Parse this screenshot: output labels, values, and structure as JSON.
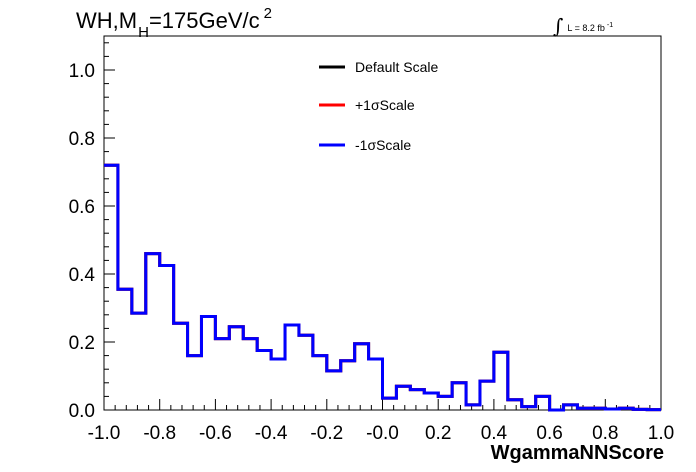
{
  "title": {
    "prefix": "WH,M",
    "subscript": "H",
    "main": "=175GeV/c",
    "superscript": "2"
  },
  "luminosity": {
    "integral_symbol": "∫",
    "text": "L = 8.2 fb",
    "superscript": "-1"
  },
  "chart_data": {
    "type": "histogram",
    "xlabel": "WgammaNNScore",
    "xlim": [
      -1.0,
      1.0
    ],
    "ylim": [
      0.0,
      1.1
    ],
    "x_ticks": [
      "-1.0",
      "-0.8",
      "-0.6",
      "-0.4",
      "-0.2",
      "-0.0",
      "0.2",
      "0.4",
      "0.6",
      "0.8",
      "1.0"
    ],
    "y_ticks": [
      "0.0",
      "0.2",
      "0.4",
      "0.6",
      "0.8",
      "1.0"
    ],
    "bin_edges": [
      -1.0,
      -0.95,
      -0.9,
      -0.85,
      -0.8,
      -0.75,
      -0.7,
      -0.65,
      -0.6,
      -0.55,
      -0.5,
      -0.45,
      -0.4,
      -0.35,
      -0.3,
      -0.25,
      -0.2,
      -0.15,
      -0.1,
      -0.05,
      0.0,
      0.05,
      0.1,
      0.15,
      0.2,
      0.25,
      0.3,
      0.35,
      0.4,
      0.45,
      0.5,
      0.55,
      0.6,
      0.65,
      0.7,
      0.75,
      0.8,
      0.85,
      0.9,
      0.95,
      1.0
    ],
    "series": [
      {
        "name": "Default Scale",
        "color": "#000000",
        "values": [
          0.72,
          0.355,
          0.285,
          0.46,
          0.425,
          0.255,
          0.16,
          0.275,
          0.21,
          0.245,
          0.21,
          0.175,
          0.15,
          0.25,
          0.22,
          0.16,
          0.115,
          0.145,
          0.195,
          0.15,
          0.035,
          0.07,
          0.06,
          0.05,
          0.04,
          0.08,
          0.015,
          0.085,
          0.17,
          0.03,
          0.01,
          0.04,
          0.0,
          0.015,
          0.005,
          0.005,
          0.003,
          0.005,
          0.002,
          0.001
        ]
      },
      {
        "name": "+1σScale",
        "color": "#ff0000",
        "values": [
          0.72,
          0.355,
          0.285,
          0.46,
          0.425,
          0.255,
          0.16,
          0.275,
          0.21,
          0.245,
          0.21,
          0.175,
          0.15,
          0.25,
          0.22,
          0.16,
          0.115,
          0.145,
          0.195,
          0.15,
          0.035,
          0.07,
          0.06,
          0.05,
          0.04,
          0.08,
          0.015,
          0.085,
          0.17,
          0.03,
          0.01,
          0.04,
          0.0,
          0.015,
          0.005,
          0.005,
          0.003,
          0.005,
          0.002,
          0.001
        ]
      },
      {
        "name": "-1σScale",
        "color": "#0000ff",
        "values": [
          0.72,
          0.355,
          0.285,
          0.46,
          0.425,
          0.255,
          0.16,
          0.275,
          0.21,
          0.245,
          0.21,
          0.175,
          0.15,
          0.25,
          0.22,
          0.16,
          0.115,
          0.145,
          0.195,
          0.15,
          0.035,
          0.07,
          0.06,
          0.05,
          0.04,
          0.08,
          0.015,
          0.085,
          0.17,
          0.03,
          0.01,
          0.04,
          0.0,
          0.015,
          0.005,
          0.005,
          0.003,
          0.005,
          0.002,
          0.001
        ]
      }
    ],
    "legend_position": "top-center"
  }
}
